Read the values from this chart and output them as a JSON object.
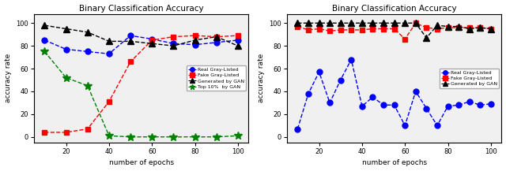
{
  "title": "Binary Classification Accuracy",
  "xlabel": "number of epochs",
  "ylabel": "accuracy rate",
  "left": {
    "epochs": [
      10,
      20,
      30,
      40,
      50,
      60,
      70,
      80,
      90,
      100
    ],
    "real_gray": [
      85,
      77,
      75,
      73,
      89,
      86,
      82,
      81,
      83,
      85
    ],
    "fake_gray": [
      4,
      4,
      7,
      31,
      66,
      85,
      88,
      89,
      88,
      89
    ],
    "generated_gan": [
      98,
      95,
      92,
      84,
      84,
      82,
      80,
      85,
      88,
      80
    ],
    "top10_gan": [
      75,
      52,
      45,
      1,
      0,
      0,
      0,
      0,
      0,
      1
    ]
  },
  "right": {
    "epochs": [
      10,
      15,
      20,
      25,
      30,
      35,
      40,
      45,
      50,
      55,
      60,
      65,
      70,
      75,
      80,
      85,
      90,
      95,
      100
    ],
    "real_gray": [
      7,
      38,
      57,
      30,
      50,
      68,
      27,
      35,
      28,
      28,
      10,
      40,
      25,
      10,
      27,
      28,
      31,
      28,
      29
    ],
    "fake_gray": [
      97,
      94,
      95,
      93,
      94,
      94,
      94,
      95,
      95,
      95,
      86,
      100,
      96,
      95,
      96,
      96,
      96,
      96,
      95
    ],
    "generated_gan": [
      100,
      100,
      100,
      100,
      100,
      100,
      100,
      100,
      100,
      100,
      100,
      100,
      87,
      98,
      97,
      97,
      95,
      96,
      95
    ]
  },
  "colors": {
    "real_gray": "blue",
    "fake_gray": "red",
    "generated_gan": "black",
    "top10_gan": "green"
  },
  "legend_left": [
    "Real Gray-Listed",
    "Fake Gray-Listed",
    "Generated by GAN",
    "Top 10%  by GAN"
  ],
  "legend_right": [
    "Real Gray-Listed",
    "Fake Gray-Listed",
    "Generated by GAN"
  ],
  "left_ylim": [
    -5,
    108
  ],
  "right_ylim": [
    -5,
    108
  ],
  "xlim": [
    5,
    105
  ],
  "xticks": [
    20,
    40,
    60,
    80,
    100
  ],
  "left_yticks": [
    0,
    20,
    40,
    60,
    80,
    100
  ],
  "right_yticks": [
    0,
    20,
    40,
    60,
    80,
    100
  ],
  "bg_color": "#f0f0f0",
  "fig_facecolor": "#ffffff"
}
